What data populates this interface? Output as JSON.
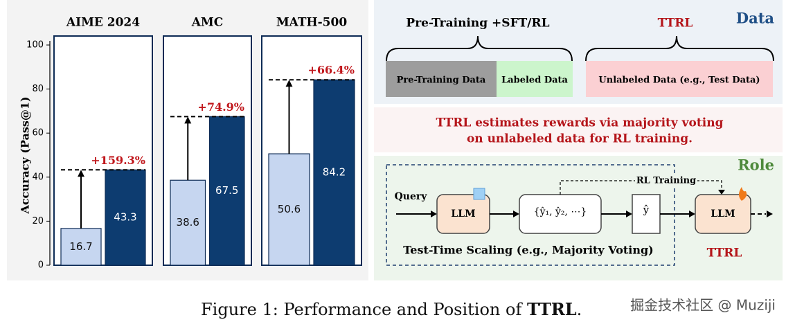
{
  "chart_data": {
    "type": "bar",
    "ylabel": "Accuracy (Pass@1)",
    "ylim": [
      0,
      100
    ],
    "yticks": [
      0,
      20,
      40,
      60,
      80,
      100
    ],
    "colors": [
      "#c6d6f0",
      "#0d3c70"
    ],
    "annotation_color": "#c0161b",
    "groups": [
      {
        "title": "AIME 2024",
        "values": [
          16.7,
          43.3
        ],
        "annotation": "+159.3%"
      },
      {
        "title": "AMC",
        "values": [
          38.6,
          67.5
        ],
        "annotation": "+74.9%"
      },
      {
        "title": "MATH-500",
        "values": [
          50.6,
          84.2
        ],
        "annotation": "+66.4%"
      }
    ]
  },
  "diagram": {
    "data_section": {
      "left_title": "Pre-Training +SFT/RL",
      "right_title": "TTRL",
      "label": "Data",
      "boxes": [
        "Pre-Training Data",
        "Labeled Data",
        "Unlabeled Data (e.g., Test Data)"
      ]
    },
    "message": [
      "TTRL estimates rewards via majority voting",
      "on unlabeled data for RL training."
    ],
    "role_section": {
      "label": "Role",
      "query": "Query",
      "llm": "LLM",
      "samples": "{ŷ₁, ŷ₂, ⋯}",
      "answer": "ŷ",
      "rl_training": "RL Training",
      "llm_trained": "LLM",
      "scaling": "Test-Time Scaling (e.g., Majority Voting)",
      "ttrl": "TTRL"
    }
  },
  "caption": {
    "prefix": "Figure 1: Performance and Position of ",
    "bold": "TTRL",
    "suffix": "."
  },
  "watermark": "掘金技术社区 @ Muziji"
}
